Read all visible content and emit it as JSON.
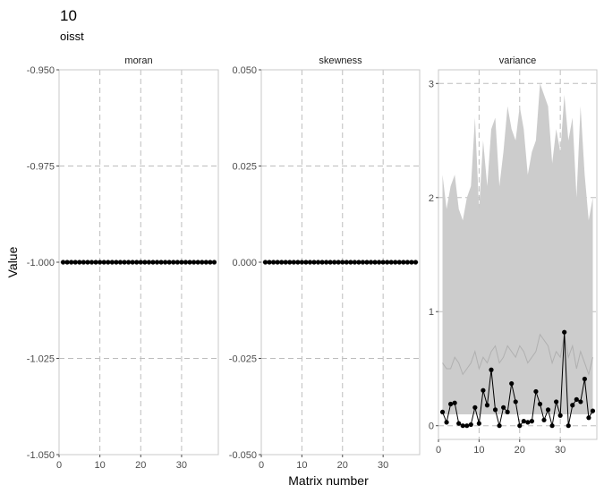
{
  "title": "10",
  "subtitle": "oisst",
  "xlabel": "Matrix number",
  "ylabel": "Value",
  "chart_data": [
    {
      "type": "line",
      "panel": "moran",
      "xlim": [
        0,
        39
      ],
      "ylim": [
        -1.05,
        -0.95
      ],
      "x_ticks": [
        0,
        10,
        20,
        30
      ],
      "y_ticks": [
        -1.05,
        -1.025,
        -1.0,
        -0.975,
        -0.95
      ],
      "y_tick_labels": [
        "-1.050",
        "-1.025",
        "-1.000",
        "-0.975",
        "-0.950"
      ],
      "x": [
        1,
        2,
        3,
        4,
        5,
        6,
        7,
        8,
        9,
        10,
        11,
        12,
        13,
        14,
        15,
        16,
        17,
        18,
        19,
        20,
        21,
        22,
        23,
        24,
        25,
        26,
        27,
        28,
        29,
        30,
        31,
        32,
        33,
        34,
        35,
        36,
        37,
        38
      ],
      "values": [
        -1,
        -1,
        -1,
        -1,
        -1,
        -1,
        -1,
        -1,
        -1,
        -1,
        -1,
        -1,
        -1,
        -1,
        -1,
        -1,
        -1,
        -1,
        -1,
        -1,
        -1,
        -1,
        -1,
        -1,
        -1,
        -1,
        -1,
        -1,
        -1,
        -1,
        -1,
        -1,
        -1,
        -1,
        -1,
        -1,
        -1,
        -1
      ]
    },
    {
      "type": "line",
      "panel": "skewness",
      "xlim": [
        0,
        39
      ],
      "ylim": [
        -0.05,
        0.05
      ],
      "x_ticks": [
        0,
        10,
        20,
        30
      ],
      "y_ticks": [
        -0.05,
        -0.025,
        0,
        0.025,
        0.05
      ],
      "y_tick_labels": [
        "-0.050",
        "-0.025",
        "0.000",
        "0.025",
        "0.050"
      ],
      "x": [
        1,
        2,
        3,
        4,
        5,
        6,
        7,
        8,
        9,
        10,
        11,
        12,
        13,
        14,
        15,
        16,
        17,
        18,
        19,
        20,
        21,
        22,
        23,
        24,
        25,
        26,
        27,
        28,
        29,
        30,
        31,
        32,
        33,
        34,
        35,
        36,
        37,
        38
      ],
      "values": [
        0,
        0,
        0,
        0,
        0,
        0,
        0,
        0,
        0,
        0,
        0,
        0,
        0,
        0,
        0,
        0,
        0,
        0,
        0,
        0,
        0,
        0,
        0,
        0,
        0,
        0,
        0,
        0,
        0,
        0,
        0,
        0,
        0,
        0,
        0,
        0,
        0,
        0
      ]
    },
    {
      "type": "line",
      "panel": "variance",
      "xlim": [
        0,
        39
      ],
      "ylim": [
        -0.12,
        3.12
      ],
      "x_ticks": [
        0,
        10,
        20,
        30
      ],
      "y_ticks": [
        0,
        1,
        2,
        3
      ],
      "y_tick_labels": [
        "0",
        "1",
        "2",
        "3"
      ],
      "x": [
        1,
        2,
        3,
        4,
        5,
        6,
        7,
        8,
        9,
        10,
        11,
        12,
        13,
        14,
        15,
        16,
        17,
        18,
        19,
        20,
        21,
        22,
        23,
        24,
        25,
        26,
        27,
        28,
        29,
        30,
        31,
        32,
        33,
        34,
        35,
        36,
        37,
        38
      ],
      "values": [
        0.12,
        0.03,
        0.19,
        0.2,
        0.02,
        0.0,
        0.0,
        0.01,
        0.16,
        0.02,
        0.31,
        0.18,
        0.49,
        0.14,
        0.0,
        0.16,
        0.12,
        0.37,
        0.21,
        0.0,
        0.04,
        0.03,
        0.04,
        0.3,
        0.19,
        0.05,
        0.14,
        0.0,
        0.21,
        0.09,
        0.82,
        0.0,
        0.18,
        0.23,
        0.21,
        0.41,
        0.07,
        0.13
      ],
      "band_upper": [
        2.2,
        1.9,
        2.1,
        2.2,
        1.9,
        1.8,
        2.0,
        2.1,
        2.7,
        1.9,
        2.5,
        2.1,
        2.6,
        2.7,
        2.1,
        2.4,
        2.8,
        2.6,
        2.5,
        2.8,
        2.6,
        2.2,
        2.4,
        2.5,
        3.0,
        2.9,
        2.8,
        2.3,
        2.6,
        2.4,
        2.9,
        2.5,
        2.7,
        2.0,
        2.8,
        2.2,
        1.8,
        2.0
      ],
      "band_lower": [
        0.1,
        0.1,
        0.1,
        0.1,
        0.1,
        0.1,
        0.1,
        0.1,
        0.1,
        0.1,
        0.1,
        0.1,
        0.1,
        0.1,
        0.1,
        0.1,
        0.1,
        0.1,
        0.1,
        0.1,
        0.1,
        0.1,
        0.1,
        0.1,
        0.1,
        0.1,
        0.1,
        0.1,
        0.1,
        0.1,
        0.1,
        0.1,
        0.1,
        0.1,
        0.1,
        0.1,
        0.1,
        0.1
      ],
      "band_mid": [
        0.55,
        0.5,
        0.5,
        0.6,
        0.55,
        0.45,
        0.5,
        0.55,
        0.65,
        0.5,
        0.6,
        0.55,
        0.65,
        0.7,
        0.55,
        0.6,
        0.7,
        0.65,
        0.6,
        0.7,
        0.65,
        0.55,
        0.6,
        0.65,
        0.8,
        0.75,
        0.7,
        0.55,
        0.65,
        0.6,
        0.8,
        0.6,
        0.7,
        0.5,
        0.65,
        0.55,
        0.45,
        0.6
      ]
    }
  ]
}
